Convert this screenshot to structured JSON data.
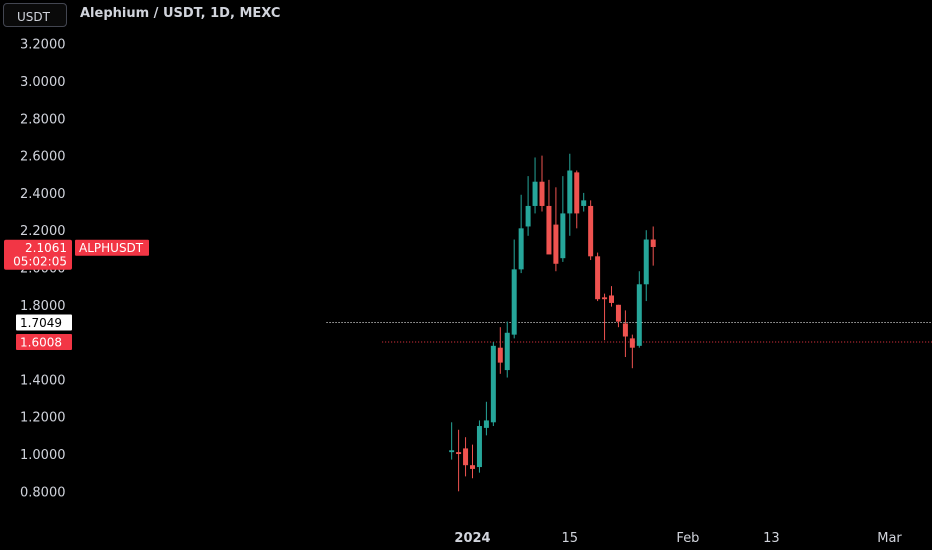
{
  "header": {
    "unit": "USDT",
    "title": "Alephium / USDT, 1D, MEXC"
  },
  "colors": {
    "background": "#000000",
    "up": "#26a69a",
    "down": "#ef5350",
    "text": "#d1d4dc",
    "last_price_bg": "#f23645",
    "level_white": "#ffffff",
    "level_red": "#f23645"
  },
  "chart_data": {
    "type": "candlestick",
    "symbol": "ALPHUSDT",
    "ylim": [
      0.72,
      3.3
    ],
    "y_ticks": [
      "3.2000",
      "3.0000",
      "2.8000",
      "2.6000",
      "2.4000",
      "2.2000",
      "2.0000",
      "1.8000",
      "1.4000",
      "1.2000",
      "1.0000",
      "0.8000"
    ],
    "x_ticks": [
      {
        "label": "2024",
        "day": 0,
        "bold": true
      },
      {
        "label": "15",
        "day": 14,
        "bold": false
      },
      {
        "label": "Feb",
        "day": 31,
        "bold": false
      },
      {
        "label": "13",
        "day": 43,
        "bold": false
      },
      {
        "label": "Mar",
        "day": 60,
        "bold": false
      }
    ],
    "candles": [
      {
        "day": -3,
        "o": 1.01,
        "h": 1.17,
        "l": 0.97,
        "c": 1.02
      },
      {
        "day": -2,
        "o": 1.01,
        "h": 1.13,
        "l": 0.8,
        "c": 1.0
      },
      {
        "day": -1,
        "o": 1.03,
        "h": 1.09,
        "l": 0.88,
        "c": 0.94
      },
      {
        "day": 0,
        "o": 0.94,
        "h": 1.05,
        "l": 0.87,
        "c": 0.92
      },
      {
        "day": 1,
        "o": 0.93,
        "h": 1.18,
        "l": 0.9,
        "c": 1.15
      },
      {
        "day": 2,
        "o": 1.14,
        "h": 1.28,
        "l": 1.1,
        "c": 1.18
      },
      {
        "day": 3,
        "o": 1.17,
        "h": 1.6,
        "l": 1.15,
        "c": 1.58
      },
      {
        "day": 4,
        "o": 1.57,
        "h": 1.68,
        "l": 1.43,
        "c": 1.49
      },
      {
        "day": 5,
        "o": 1.45,
        "h": 1.71,
        "l": 1.41,
        "c": 1.65
      },
      {
        "day": 6,
        "o": 1.64,
        "h": 2.15,
        "l": 1.62,
        "c": 1.99
      },
      {
        "day": 7,
        "o": 1.99,
        "h": 2.39,
        "l": 1.97,
        "c": 2.21
      },
      {
        "day": 8,
        "o": 2.22,
        "h": 2.49,
        "l": 2.17,
        "c": 2.33
      },
      {
        "day": 9,
        "o": 2.33,
        "h": 2.59,
        "l": 2.29,
        "c": 2.46
      },
      {
        "day": 10,
        "o": 2.46,
        "h": 2.6,
        "l": 2.3,
        "c": 2.33
      },
      {
        "day": 11,
        "o": 2.33,
        "h": 2.47,
        "l": 2.09,
        "c": 2.07
      },
      {
        "day": 12,
        "o": 2.23,
        "h": 2.43,
        "l": 1.98,
        "c": 2.02
      },
      {
        "day": 13,
        "o": 2.05,
        "h": 2.49,
        "l": 2.03,
        "c": 2.29
      },
      {
        "day": 14,
        "o": 2.29,
        "h": 2.61,
        "l": 2.17,
        "c": 2.52
      },
      {
        "day": 15,
        "o": 2.51,
        "h": 2.52,
        "l": 2.21,
        "c": 2.29
      },
      {
        "day": 16,
        "o": 2.33,
        "h": 2.4,
        "l": 2.3,
        "c": 2.36
      },
      {
        "day": 17,
        "o": 2.33,
        "h": 2.36,
        "l": 2.04,
        "c": 2.06
      },
      {
        "day": 18,
        "o": 2.06,
        "h": 2.08,
        "l": 1.82,
        "c": 1.83
      },
      {
        "day": 19,
        "o": 1.84,
        "h": 1.86,
        "l": 1.61,
        "c": 1.83
      },
      {
        "day": 20,
        "o": 1.85,
        "h": 1.9,
        "l": 1.79,
        "c": 1.81
      },
      {
        "day": 21,
        "o": 1.8,
        "h": 1.8,
        "l": 1.68,
        "c": 1.71
      },
      {
        "day": 22,
        "o": 1.7,
        "h": 1.77,
        "l": 1.52,
        "c": 1.63
      },
      {
        "day": 23,
        "o": 1.62,
        "h": 1.64,
        "l": 1.46,
        "c": 1.57
      },
      {
        "day": 24,
        "o": 1.58,
        "h": 1.98,
        "l": 1.57,
        "c": 1.91
      },
      {
        "day": 25,
        "o": 1.91,
        "h": 2.2,
        "l": 1.82,
        "c": 2.15
      },
      {
        "day": 26,
        "o": 2.15,
        "h": 2.22,
        "l": 2.01,
        "c": 2.11
      }
    ],
    "last_price": {
      "value": "2.1061",
      "countdown": "05:02:05",
      "label": "ALPHUSDT",
      "y": 2.1061
    },
    "levels": [
      {
        "value": "1.7049",
        "y": 1.7049,
        "color": "white",
        "start_day": -21
      },
      {
        "value": "1.6008",
        "y": 1.6008,
        "color": "red",
        "start_day": -13
      }
    ]
  }
}
